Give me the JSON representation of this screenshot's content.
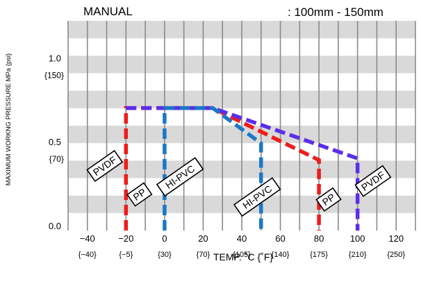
{
  "header": {
    "left_label": "MANUAL",
    "right_label": ": 100mm - 150mm"
  },
  "chart_data": {
    "type": "line",
    "title": "",
    "xlabel": "TEMP. ˚C {˚F}",
    "ylabel": "MAXIMUM WORKNG PRESSURE   MPa {psi}",
    "xlim": [
      -50,
      130
    ],
    "ylim": [
      0,
      1.25
    ],
    "x_ticks": [
      {
        "value": -40,
        "label": "−40",
        "sublabel": "{−40}"
      },
      {
        "value": -20,
        "label": "−20",
        "sublabel": "{−5}"
      },
      {
        "value": 0,
        "label": "0",
        "sublabel": "{30}"
      },
      {
        "value": 20,
        "label": "20",
        "sublabel": "{70}"
      },
      {
        "value": 40,
        "label": "40",
        "sublabel": "{105}"
      },
      {
        "value": 60,
        "label": "60",
        "sublabel": "{140}"
      },
      {
        "value": 80,
        "label": "80",
        "sublabel": "{175}"
      },
      {
        "value": 100,
        "label": "100",
        "sublabel": "{210}"
      },
      {
        "value": 120,
        "label": "120",
        "sublabel": "{250}"
      }
    ],
    "y_ticks": [
      {
        "value": 0,
        "label": "0.0",
        "sublabel": ""
      },
      {
        "value": 0.5,
        "label": "0.5",
        "sublabel": "{70}"
      },
      {
        "value": 1.0,
        "label": "1.0",
        "sublabel": "{150}"
      }
    ],
    "grid": true,
    "series": [
      {
        "name": "PP",
        "color": "#ee1c1c",
        "x": [
          -20,
          -20,
          25,
          80,
          80
        ],
        "y": [
          0,
          0.73,
          0.73,
          0.42,
          0
        ]
      },
      {
        "name": "PVDF",
        "color": "#5b2ee8",
        "x": [
          -20,
          25,
          100,
          100
        ],
        "y": [
          0.73,
          0.73,
          0.43,
          0
        ]
      },
      {
        "name": "HI-PVC",
        "color": "#1b78c8",
        "x": [
          0,
          0,
          25,
          50,
          50
        ],
        "y": [
          0,
          0.73,
          0.73,
          0.52,
          0
        ]
      }
    ],
    "annotations": [
      {
        "text": "PVDF",
        "x": -31,
        "y": 0.385
      },
      {
        "text": "PP",
        "x": -13,
        "y": 0.215
      },
      {
        "text": "HI-PVC",
        "x": 8,
        "y": 0.32
      },
      {
        "text": "HI-PVC",
        "x": 48,
        "y": 0.2
      },
      {
        "text": "PP",
        "x": 85,
        "y": 0.185
      },
      {
        "text": "PVDF",
        "x": 108,
        "y": 0.295
      }
    ]
  }
}
